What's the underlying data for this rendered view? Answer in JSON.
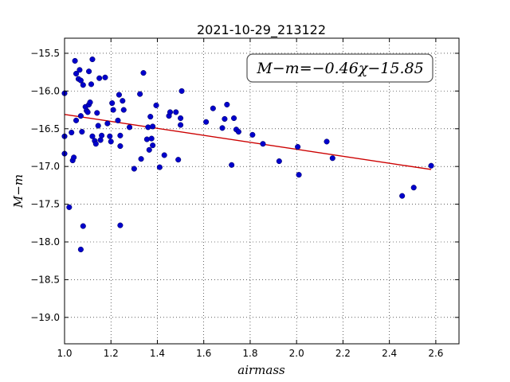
{
  "chart_data": {
    "type": "scatter",
    "title": "2021-10-29_213122",
    "xlabel": "airmass",
    "ylabel": "M−m",
    "xlim": [
      1.0,
      2.7
    ],
    "ylim": [
      -15.3,
      -19.35
    ],
    "y_inverted": true,
    "xticks": [
      1.0,
      1.2,
      1.4,
      1.6,
      1.8,
      2.0,
      2.2,
      2.4,
      2.6
    ],
    "xtick_labels": [
      "1.0",
      "1.2",
      "1.4",
      "1.6",
      "1.8",
      "2.0",
      "2.2",
      "2.4",
      "2.6"
    ],
    "yticks": [
      -15.5,
      -16.0,
      -16.5,
      -17.0,
      -17.5,
      -18.0,
      -18.5,
      -19.0
    ],
    "ytick_labels": [
      "−15.5",
      "−16.0",
      "−16.5",
      "−17.0",
      "−17.5",
      "−18.0",
      "−18.5",
      "−19.0"
    ],
    "grid": true,
    "point_color": "#0000cc",
    "fit_color": "#cc0000",
    "fit_text": "M−m=−0.46χ−15.85",
    "fit_line": {
      "x": [
        1.0,
        2.58
      ],
      "y": [
        -16.31,
        -17.04
      ]
    },
    "points": [
      {
        "x": 1.0,
        "y": -16.03
      },
      {
        "x": 1.0,
        "y": -16.6
      },
      {
        "x": 1.0,
        "y": -16.83
      },
      {
        "x": 1.02,
        "y": -17.54
      },
      {
        "x": 1.03,
        "y": -16.55
      },
      {
        "x": 1.035,
        "y": -16.92
      },
      {
        "x": 1.04,
        "y": -16.88
      },
      {
        "x": 1.045,
        "y": -15.6
      },
      {
        "x": 1.05,
        "y": -15.77
      },
      {
        "x": 1.05,
        "y": -16.39
      },
      {
        "x": 1.06,
        "y": -15.84
      },
      {
        "x": 1.065,
        "y": -15.72
      },
      {
        "x": 1.07,
        "y": -15.86
      },
      {
        "x": 1.07,
        "y": -16.33
      },
      {
        "x": 1.075,
        "y": -16.54
      },
      {
        "x": 1.08,
        "y": -15.92
      },
      {
        "x": 1.07,
        "y": -18.1
      },
      {
        "x": 1.08,
        "y": -17.79
      },
      {
        "x": 1.09,
        "y": -16.21
      },
      {
        "x": 1.095,
        "y": -16.26
      },
      {
        "x": 1.1,
        "y": -16.28
      },
      {
        "x": 1.105,
        "y": -16.18
      },
      {
        "x": 1.11,
        "y": -16.15
      },
      {
        "x": 1.105,
        "y": -15.74
      },
      {
        "x": 1.115,
        "y": -15.91
      },
      {
        "x": 1.12,
        "y": -15.58
      },
      {
        "x": 1.12,
        "y": -16.6
      },
      {
        "x": 1.13,
        "y": -16.66
      },
      {
        "x": 1.135,
        "y": -16.7
      },
      {
        "x": 1.14,
        "y": -16.29
      },
      {
        "x": 1.145,
        "y": -16.46
      },
      {
        "x": 1.15,
        "y": -15.83
      },
      {
        "x": 1.155,
        "y": -16.65
      },
      {
        "x": 1.16,
        "y": -16.59
      },
      {
        "x": 1.175,
        "y": -15.82
      },
      {
        "x": 1.185,
        "y": -16.43
      },
      {
        "x": 1.195,
        "y": -16.6
      },
      {
        "x": 1.2,
        "y": -16.67
      },
      {
        "x": 1.205,
        "y": -16.16
      },
      {
        "x": 1.21,
        "y": -16.25
      },
      {
        "x": 1.23,
        "y": -16.39
      },
      {
        "x": 1.235,
        "y": -16.05
      },
      {
        "x": 1.24,
        "y": -16.59
      },
      {
        "x": 1.24,
        "y": -16.73
      },
      {
        "x": 1.25,
        "y": -16.13
      },
      {
        "x": 1.255,
        "y": -16.25
      },
      {
        "x": 1.24,
        "y": -17.78
      },
      {
        "x": 1.28,
        "y": -16.48
      },
      {
        "x": 1.3,
        "y": -17.03
      },
      {
        "x": 1.325,
        "y": -16.04
      },
      {
        "x": 1.33,
        "y": -16.9
      },
      {
        "x": 1.34,
        "y": -15.76
      },
      {
        "x": 1.355,
        "y": -16.64
      },
      {
        "x": 1.36,
        "y": -16.48
      },
      {
        "x": 1.365,
        "y": -16.78
      },
      {
        "x": 1.37,
        "y": -16.34
      },
      {
        "x": 1.375,
        "y": -16.63
      },
      {
        "x": 1.38,
        "y": -16.47
      },
      {
        "x": 1.38,
        "y": -16.72
      },
      {
        "x": 1.395,
        "y": -16.19
      },
      {
        "x": 1.41,
        "y": -17.01
      },
      {
        "x": 1.43,
        "y": -16.85
      },
      {
        "x": 1.45,
        "y": -16.33
      },
      {
        "x": 1.455,
        "y": -16.28
      },
      {
        "x": 1.48,
        "y": -16.28
      },
      {
        "x": 1.49,
        "y": -16.91
      },
      {
        "x": 1.5,
        "y": -16.36
      },
      {
        "x": 1.5,
        "y": -16.45
      },
      {
        "x": 1.505,
        "y": -16.0
      },
      {
        "x": 1.61,
        "y": -16.41
      },
      {
        "x": 1.64,
        "y": -16.23
      },
      {
        "x": 1.68,
        "y": -16.49
      },
      {
        "x": 1.69,
        "y": -16.37
      },
      {
        "x": 1.7,
        "y": -16.18
      },
      {
        "x": 1.72,
        "y": -16.98
      },
      {
        "x": 1.73,
        "y": -16.36
      },
      {
        "x": 1.74,
        "y": -16.51
      },
      {
        "x": 1.75,
        "y": -16.54
      },
      {
        "x": 1.81,
        "y": -16.58
      },
      {
        "x": 1.855,
        "y": -16.7
      },
      {
        "x": 1.925,
        "y": -16.93
      },
      {
        "x": 2.005,
        "y": -16.74
      },
      {
        "x": 2.01,
        "y": -17.11
      },
      {
        "x": 2.13,
        "y": -16.67
      },
      {
        "x": 2.155,
        "y": -16.89
      },
      {
        "x": 2.455,
        "y": -17.39
      },
      {
        "x": 2.505,
        "y": -17.28
      },
      {
        "x": 2.58,
        "y": -16.99
      }
    ]
  }
}
